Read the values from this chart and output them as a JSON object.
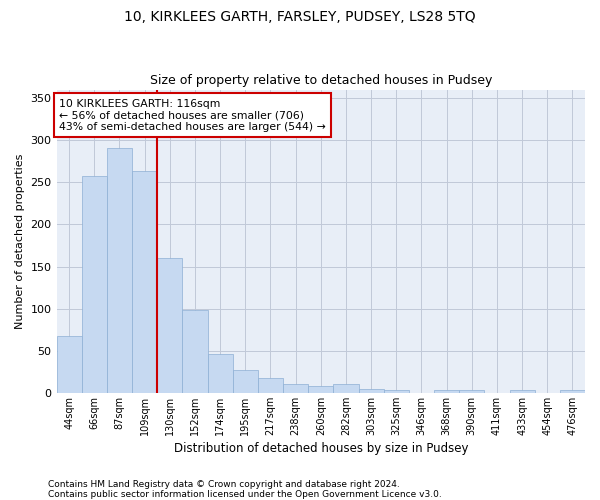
{
  "title": "10, KIRKLEES GARTH, FARSLEY, PUDSEY, LS28 5TQ",
  "subtitle": "Size of property relative to detached houses in Pudsey",
  "xlabel": "Distribution of detached houses by size in Pudsey",
  "ylabel": "Number of detached properties",
  "categories": [
    "44sqm",
    "66sqm",
    "87sqm",
    "109sqm",
    "130sqm",
    "152sqm",
    "174sqm",
    "195sqm",
    "217sqm",
    "238sqm",
    "260sqm",
    "282sqm",
    "303sqm",
    "325sqm",
    "346sqm",
    "368sqm",
    "390sqm",
    "411sqm",
    "433sqm",
    "454sqm",
    "476sqm"
  ],
  "values": [
    68,
    258,
    291,
    263,
    160,
    98,
    46,
    27,
    18,
    10,
    8,
    10,
    5,
    3,
    0,
    4,
    3,
    0,
    3,
    0,
    3
  ],
  "bar_color": "#c6d9f1",
  "bar_edge_color": "#8dafd4",
  "annotation_text_line1": "10 KIRKLEES GARTH: 116sqm",
  "annotation_text_line2": "← 56% of detached houses are smaller (706)",
  "annotation_text_line3": "43% of semi-detached houses are larger (544) →",
  "annotation_box_color": "#ffffff",
  "annotation_box_edge_color": "#cc0000",
  "vline_color": "#cc0000",
  "vline_x": 3.5,
  "background_color": "#ffffff",
  "plot_bg_color": "#e8eef7",
  "grid_color": "#c0c8d8",
  "ylim": [
    0,
    360
  ],
  "yticks": [
    0,
    50,
    100,
    150,
    200,
    250,
    300,
    350
  ],
  "footer_line1": "Contains HM Land Registry data © Crown copyright and database right 2024.",
  "footer_line2": "Contains public sector information licensed under the Open Government Licence v3.0."
}
